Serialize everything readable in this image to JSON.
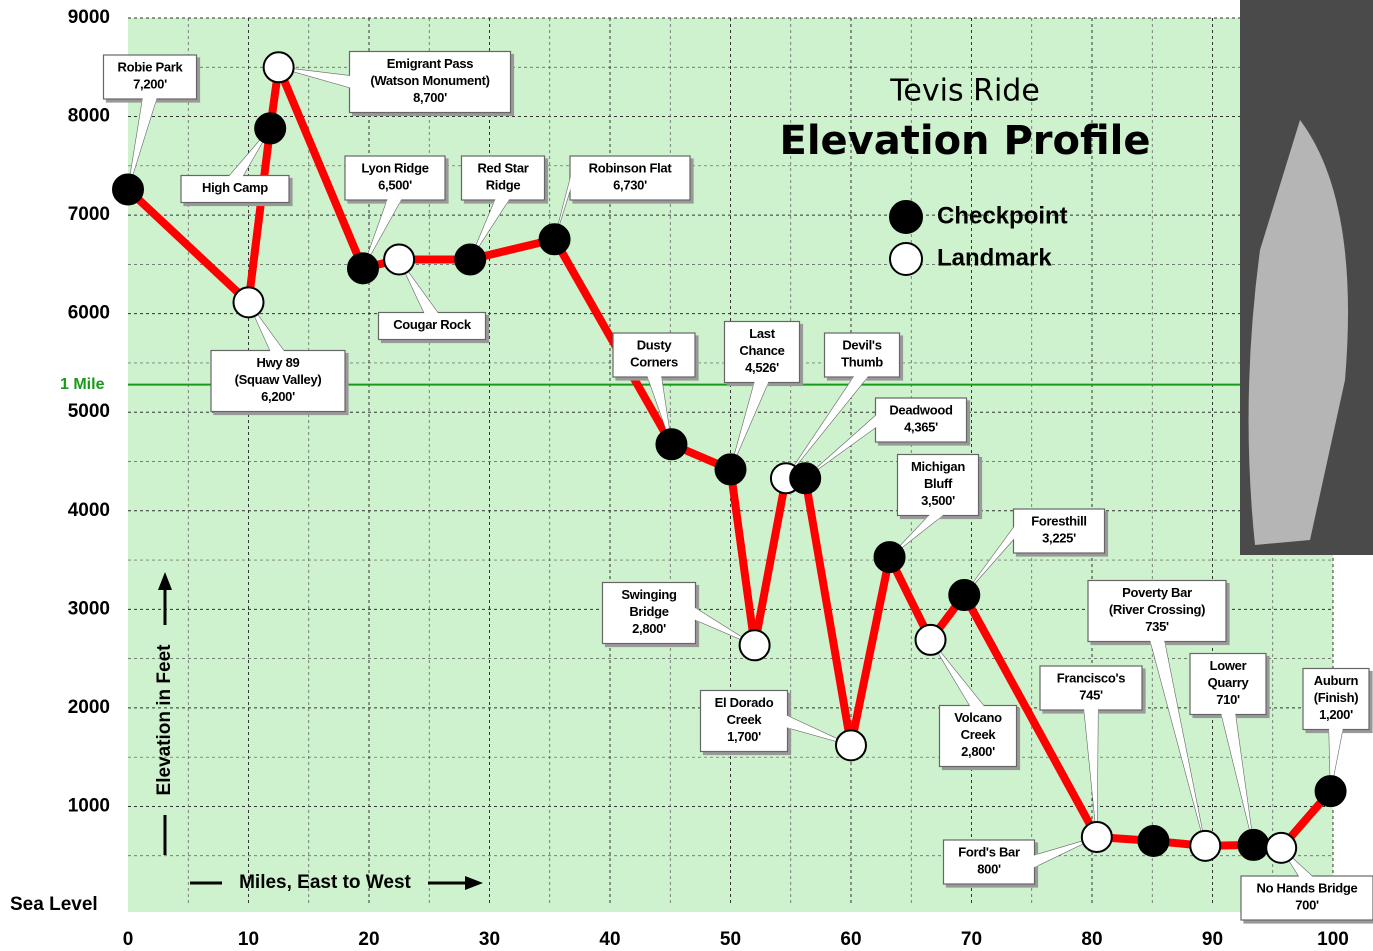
{
  "chart_data": {
    "type": "line",
    "title": "Elevation Profile",
    "subtitle": "Tevis Ride",
    "y_label": "Elevation in Feet",
    "x_label": "Miles, East to West",
    "xlim": [
      0,
      100
    ],
    "ylim": [
      0,
      9000
    ],
    "xticks": [
      0,
      10,
      20,
      30,
      40,
      50,
      60,
      70,
      80,
      90,
      100
    ],
    "yticks": [
      {
        "value": 0,
        "label": "Sea Level"
      },
      1000,
      2000,
      3000,
      4000,
      5000,
      6000,
      7000,
      8000,
      9000
    ],
    "grid": true,
    "reference_line": {
      "value": 5280,
      "label": "1 Mile",
      "color": "#1a9a1a"
    },
    "line_color": "#ff0000",
    "series": [
      {
        "name": "Checkpoint",
        "color": "#000000"
      },
      {
        "name": "Landmark",
        "color": "#ffffff"
      }
    ],
    "x": [
      0,
      10.0,
      11.8,
      12.5,
      19.5,
      22.5,
      28.4,
      35.4,
      45.1,
      50.0,
      52.0,
      54.6,
      56.2,
      60.0,
      63.2,
      66.6,
      69.4,
      80.4,
      85.1,
      89.4,
      93.4,
      95.7,
      99.8
    ],
    "values": [
      7260,
      6115,
      7880,
      8500,
      6460,
      6550,
      6550,
      6755,
      4675,
      4420,
      2635,
      4330,
      4330,
      1620,
      3530,
      2690,
      3145,
      690,
      650,
      600,
      610,
      580,
      1155
    ],
    "markers": [
      "Checkpoint",
      "Landmark",
      "Checkpoint",
      "Landmark",
      "Checkpoint",
      "Landmark",
      "Checkpoint",
      "Checkpoint",
      "Checkpoint",
      "Checkpoint",
      "Landmark",
      "Landmark",
      "Checkpoint",
      "Landmark",
      "Checkpoint",
      "Landmark",
      "Checkpoint",
      "Landmark",
      "Checkpoint",
      "Landmark",
      "Checkpoint",
      "Landmark",
      "Checkpoint"
    ],
    "annotations": [
      {
        "lines": [
          "Robie Park",
          "7,200'"
        ]
      },
      {
        "lines": [
          "High Camp"
        ]
      },
      {
        "lines": [
          "Emigrant Pass",
          "(Watson Monument)",
          "8,700'"
        ]
      },
      {
        "lines": [
          "Lyon Ridge",
          "6,500'"
        ]
      },
      {
        "lines": [
          "Red Star",
          "Ridge"
        ]
      },
      {
        "lines": [
          "Robinson Flat",
          "6,730'"
        ]
      },
      {
        "lines": [
          "Hwy 89",
          "(Squaw Valley)",
          "6,200'"
        ]
      },
      {
        "lines": [
          "Cougar Rock"
        ]
      },
      {
        "lines": [
          "Dusty",
          "Corners"
        ]
      },
      {
        "lines": [
          "Last",
          "Chance",
          "4,526'"
        ]
      },
      {
        "lines": [
          "Devil's",
          "Thumb"
        ]
      },
      {
        "lines": [
          "Deadwood",
          "4,365'"
        ]
      },
      {
        "lines": [
          "Michigan",
          "Bluff",
          "3,500'"
        ]
      },
      {
        "lines": [
          "Foresthill",
          "3,225'"
        ]
      },
      {
        "lines": [
          "Swinging",
          "Bridge",
          "2,800'"
        ]
      },
      {
        "lines": [
          "El Dorado",
          "Creek",
          "1,700'"
        ]
      },
      {
        "lines": [
          "Volcano",
          "Creek",
          "2,800'"
        ]
      },
      {
        "lines": [
          "Francisco's",
          "745'"
        ]
      },
      {
        "lines": [
          "Poverty Bar",
          "(River Crossing)",
          "735'"
        ]
      },
      {
        "lines": [
          "Lower",
          "Quarry",
          "710'"
        ]
      },
      {
        "lines": [
          "Auburn",
          "(Finish)",
          "1,200'"
        ]
      },
      {
        "lines": [
          "Ford's Bar",
          "800'"
        ]
      },
      {
        "lines": [
          "No Hands Bridge",
          "700'"
        ]
      }
    ]
  }
}
